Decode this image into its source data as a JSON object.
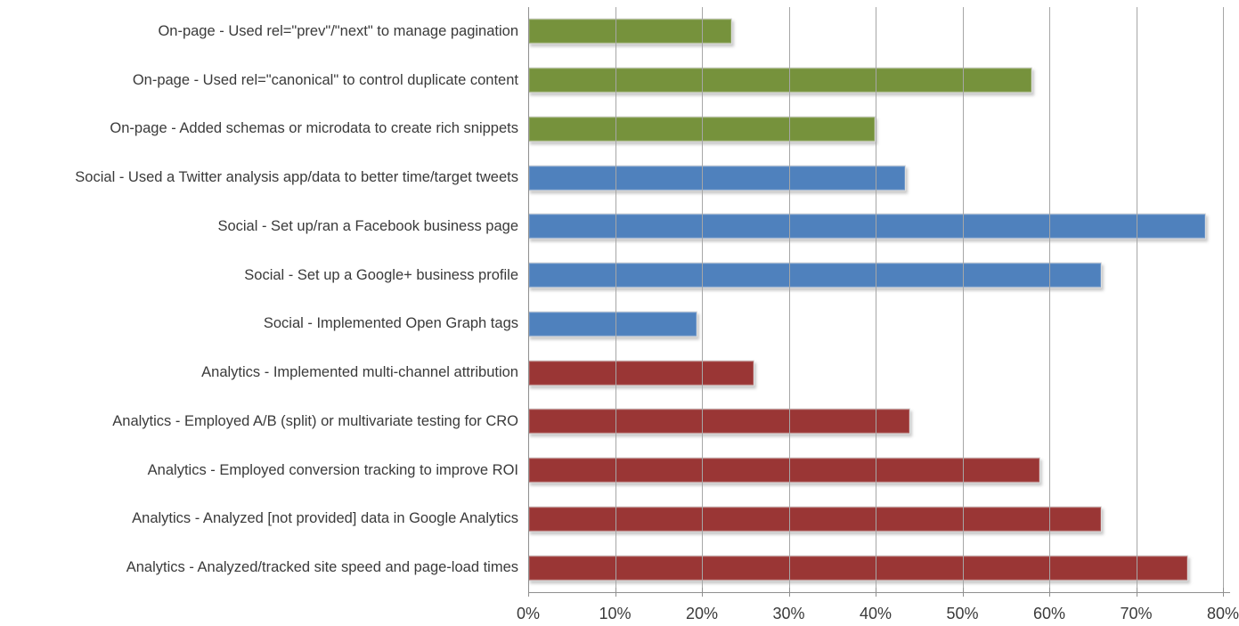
{
  "chart_data": {
    "type": "bar",
    "orientation": "horizontal",
    "title": "",
    "xlabel": "",
    "ylabel": "",
    "xlim": [
      0,
      80
    ],
    "grid": true,
    "legend_position": "none",
    "x_tick_labels": [
      "0%",
      "10%",
      "20%",
      "30%",
      "40%",
      "50%",
      "60%",
      "70%",
      "80%"
    ],
    "categories": [
      "On-page - Used rel=\"prev\"/\"next\" to manage pagination",
      "On-page - Used rel=\"canonical\" to control duplicate content",
      "On-page - Added schemas or microdata to create rich snippets",
      "Social - Used a Twitter analysis app/data to better time/target tweets",
      "Social - Set up/ran a Facebook business page",
      "Social - Set up a Google+ business profile",
      "Social - Implemented Open Graph tags",
      "Analytics - Implemented multi-channel attribution",
      "Analytics - Employed A/B (split) or multivariate testing for CRO",
      "Analytics - Employed conversion tracking to improve ROI",
      "Analytics - Analyzed [not provided] data in Google Analytics",
      "Analytics - Analyzed/tracked site speed and page-load times"
    ],
    "values": [
      23.5,
      58,
      40,
      43.5,
      78,
      66,
      19.5,
      26,
      44,
      59,
      66,
      76
    ],
    "groups": [
      "on-page",
      "on-page",
      "on-page",
      "social",
      "social",
      "social",
      "social",
      "analytics",
      "analytics",
      "analytics",
      "analytics",
      "analytics"
    ],
    "group_colors": {
      "on-page": "#76923C",
      "social": "#4F81BD",
      "analytics": "#9A3635"
    },
    "gridline_color": "#A6A6A6",
    "axis_color": "#8F8F8F",
    "label_color": "#3A3A3A",
    "background": "#FFFFFF"
  }
}
